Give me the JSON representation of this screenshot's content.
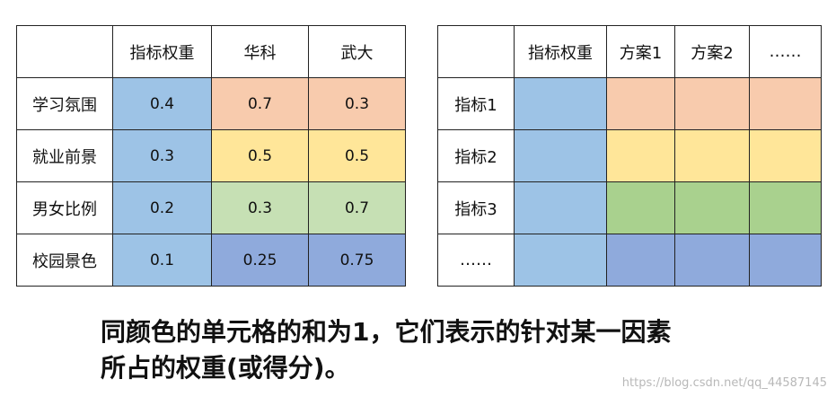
{
  "colors": {
    "blue": "#9dc3e6",
    "orange": "#f8cbad",
    "yellow": "#ffe699",
    "lightgreen": "#c6e0b4",
    "green": "#a9d18e",
    "darkblue": "#8faadc"
  },
  "table1": {
    "headers": [
      "",
      "指标权重",
      "华科",
      "武大"
    ],
    "rows": [
      {
        "label": "学习氛围",
        "values": [
          "0.4",
          "0.7",
          "0.3"
        ],
        "colors": [
          "blue",
          "orange",
          "orange"
        ]
      },
      {
        "label": "就业前景",
        "values": [
          "0.3",
          "0.5",
          "0.5"
        ],
        "colors": [
          "blue",
          "yellow",
          "yellow"
        ]
      },
      {
        "label": "男女比例",
        "values": [
          "0.2",
          "0.3",
          "0.7"
        ],
        "colors": [
          "blue",
          "lightgreen",
          "lightgreen"
        ]
      },
      {
        "label": "校园景色",
        "values": [
          "0.1",
          "0.25",
          "0.75"
        ],
        "colors": [
          "blue",
          "darkblue",
          "darkblue"
        ]
      }
    ]
  },
  "table2": {
    "headers": [
      "",
      "指标权重",
      "方案1",
      "方案2",
      "……"
    ],
    "rows": [
      {
        "label": "指标1",
        "colors": [
          "blue",
          "orange",
          "orange",
          "orange"
        ]
      },
      {
        "label": "指标2",
        "colors": [
          "blue",
          "yellow",
          "yellow",
          "yellow"
        ]
      },
      {
        "label": "指标3",
        "colors": [
          "blue",
          "green",
          "green",
          "green"
        ]
      },
      {
        "label": "……",
        "colors": [
          "blue",
          "darkblue",
          "darkblue",
          "darkblue"
        ]
      }
    ]
  },
  "caption": {
    "line1": "同颜色的单元格的和为1，它们表示的针对某一因素",
    "line2": "所占的权重(或得分)。"
  },
  "watermark": "https://blog.csdn.net/qq_44587145"
}
